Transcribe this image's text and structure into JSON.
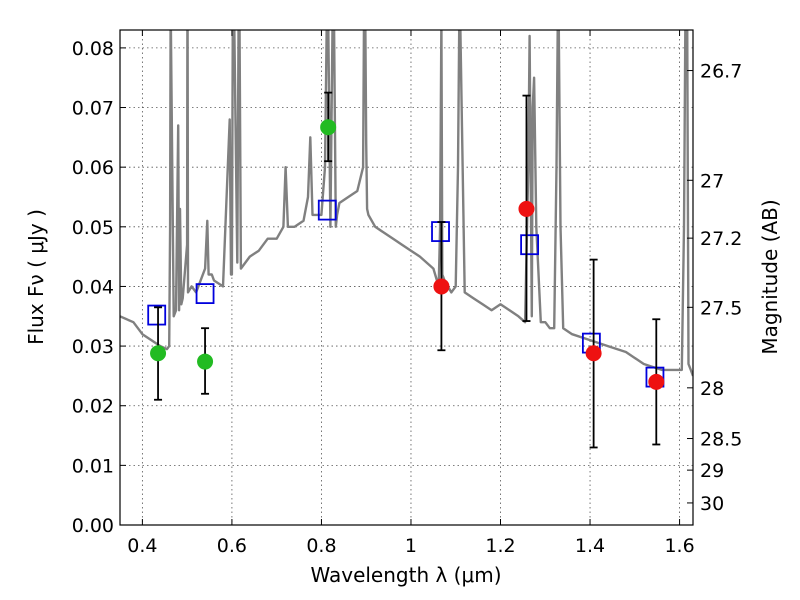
{
  "chart_data": {
    "type": "scatter",
    "title": "",
    "xlabel": "Wavelength  λ (μm)",
    "ylabel": "Flux  Fν  ( μJy )",
    "ylabel_right": "Magnitude (AB)",
    "xlim": [
      0.35,
      1.63
    ],
    "ylim": [
      0.0,
      0.083
    ],
    "grid": true,
    "x_ticks": [
      0.4,
      0.6,
      0.8,
      1.0,
      1.2,
      1.4,
      1.6
    ],
    "x_tick_labels": [
      "0.4",
      "0.6",
      "0.8",
      "1",
      "1.2",
      "1.4",
      "1.6"
    ],
    "y_ticks": [
      0.0,
      0.01,
      0.02,
      0.03,
      0.04,
      0.05,
      0.06,
      0.07,
      0.08
    ],
    "y_tick_labels": [
      "0.00",
      "0.01",
      "0.02",
      "0.03",
      "0.04",
      "0.05",
      "0.06",
      "0.07",
      "0.08"
    ],
    "right_ticks": [
      {
        "label": "26.7",
        "flux": 0.0762
      },
      {
        "label": "27",
        "flux": 0.0578
      },
      {
        "label": "27.2",
        "flux": 0.0481
      },
      {
        "label": "27.5",
        "flux": 0.0365
      },
      {
        "label": "28",
        "flux": 0.023
      },
      {
        "label": "28.5",
        "flux": 0.0145
      },
      {
        "label": "29",
        "flux": 0.0092
      },
      {
        "label": "30",
        "flux": 0.0037
      }
    ],
    "colors": {
      "spectrum": "#808080",
      "green": "#22bb22",
      "red": "#ee1111",
      "model_box": "#0000dd",
      "errorbar": "#000000"
    },
    "series": [
      {
        "name": "spectrum",
        "kind": "line",
        "x": [
          0.35,
          0.38,
          0.4,
          0.42,
          0.44,
          0.455,
          0.46,
          0.462,
          0.463,
          0.4635,
          0.47,
          0.475,
          0.48,
          0.482,
          0.484,
          0.487,
          0.49,
          0.5,
          0.5005,
          0.501,
          0.502,
          0.51,
          0.52,
          0.54,
          0.545,
          0.548,
          0.55,
          0.555,
          0.56,
          0.58,
          0.595,
          0.598,
          0.6,
          0.602,
          0.605,
          0.612,
          0.615,
          0.617,
          0.62,
          0.64,
          0.66,
          0.68,
          0.7,
          0.715,
          0.72,
          0.725,
          0.74,
          0.76,
          0.77,
          0.775,
          0.78,
          0.79,
          0.8,
          0.808,
          0.812,
          0.815,
          0.82,
          0.825,
          0.828,
          0.832,
          0.835,
          0.84,
          0.86,
          0.88,
          0.893,
          0.895,
          0.898,
          0.9,
          0.902,
          0.905,
          0.92,
          0.94,
          0.96,
          0.98,
          1.0,
          1.02,
          1.05,
          1.062,
          1.065,
          1.068,
          1.07,
          1.075,
          1.09,
          1.1,
          1.105,
          1.108,
          1.11,
          1.12,
          1.14,
          1.16,
          1.18,
          1.2,
          1.22,
          1.24,
          1.255,
          1.262,
          1.265,
          1.27,
          1.272,
          1.275,
          1.28,
          1.29,
          1.3,
          1.31,
          1.32,
          1.325,
          1.328,
          1.33,
          1.334,
          1.34,
          1.36,
          1.4,
          1.44,
          1.48,
          1.52,
          1.56,
          1.58,
          1.605,
          1.61,
          1.613,
          1.617,
          1.62,
          1.625,
          1.63
        ],
        "y": [
          0.035,
          0.034,
          0.032,
          0.031,
          0.03,
          0.0295,
          0.03,
          0.05,
          0.085,
          0.085,
          0.035,
          0.036,
          0.067,
          0.036,
          0.053,
          0.037,
          0.038,
          0.047,
          0.085,
          0.085,
          0.039,
          0.04,
          0.039,
          0.043,
          0.051,
          0.042,
          0.042,
          0.042,
          0.041,
          0.04,
          0.068,
          0.042,
          0.042,
          0.085,
          0.085,
          0.044,
          0.085,
          0.085,
          0.043,
          0.045,
          0.046,
          0.048,
          0.048,
          0.05,
          0.06,
          0.05,
          0.05,
          0.051,
          0.055,
          0.065,
          0.052,
          0.052,
          0.052,
          0.06,
          0.085,
          0.085,
          0.05,
          0.085,
          0.085,
          0.05,
          0.052,
          0.054,
          0.055,
          0.056,
          0.06,
          0.085,
          0.085,
          0.064,
          0.053,
          0.052,
          0.05,
          0.049,
          0.048,
          0.047,
          0.046,
          0.045,
          0.043,
          0.04,
          0.05,
          0.085,
          0.042,
          0.041,
          0.039,
          0.04,
          0.06,
          0.085,
          0.085,
          0.039,
          0.038,
          0.037,
          0.036,
          0.037,
          0.036,
          0.035,
          0.034,
          0.06,
          0.082,
          0.035,
          0.07,
          0.075,
          0.05,
          0.034,
          0.034,
          0.033,
          0.033,
          0.06,
          0.085,
          0.085,
          0.05,
          0.033,
          0.032,
          0.031,
          0.03,
          0.029,
          0.027,
          0.026,
          0.026,
          0.026,
          0.05,
          0.085,
          0.085,
          0.027,
          0.026,
          0.025
        ]
      },
      {
        "name": "photometry_green",
        "kind": "points",
        "x": [
          0.435,
          0.54,
          0.815
        ],
        "y": [
          0.0288,
          0.0274,
          0.0667
        ],
        "yerr_low": [
          0.021,
          0.022,
          0.061
        ],
        "yerr_high": [
          0.0365,
          0.033,
          0.0725
        ]
      },
      {
        "name": "photometry_red",
        "kind": "points",
        "x": [
          1.068,
          1.258,
          1.408,
          1.548
        ],
        "y": [
          0.04,
          0.053,
          0.0288,
          0.024
        ],
        "yerr_low": [
          0.0293,
          0.0342,
          0.013,
          0.0135
        ],
        "yerr_high": [
          0.0508,
          0.072,
          0.0445,
          0.0345
        ]
      },
      {
        "name": "model_boxes",
        "kind": "open-squares",
        "x": [
          0.432,
          0.54,
          0.813,
          1.066,
          1.265,
          1.403,
          1.545
        ],
        "y": [
          0.0352,
          0.0388,
          0.0528,
          0.0492,
          0.047,
          0.0305,
          0.0248
        ]
      }
    ]
  }
}
